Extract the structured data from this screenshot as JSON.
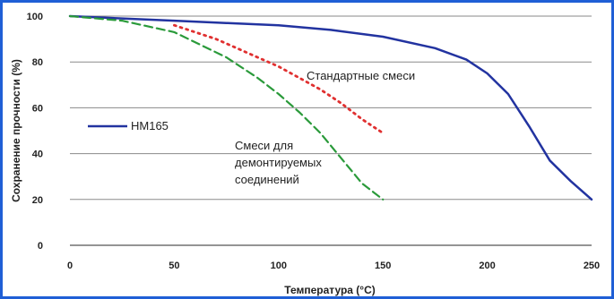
{
  "chart_data": {
    "type": "line",
    "xlabel": "Температура (°C)",
    "ylabel": "Сохранение прочности (%)",
    "xlim": [
      0,
      250
    ],
    "ylim": [
      0,
      100
    ],
    "x_ticks": [
      "0",
      "50",
      "100",
      "150",
      "200",
      "250"
    ],
    "y_ticks": [
      "0",
      "20",
      "40",
      "60",
      "80",
      "100"
    ],
    "grid": "horizontal",
    "legend": "left-middle",
    "series": [
      {
        "name": "HM165",
        "color": "#2233a0",
        "style": "solid",
        "x": [
          0,
          25,
          50,
          75,
          100,
          125,
          150,
          175,
          190,
          200,
          210,
          220,
          230,
          240,
          250
        ],
        "y": [
          100,
          99,
          98,
          97,
          96,
          94,
          91,
          86,
          81,
          75,
          66,
          52,
          37,
          28,
          20
        ]
      },
      {
        "name": "Стандартные смеси",
        "color": "#e03030",
        "style": "dotted",
        "x": [
          50,
          60,
          70,
          80,
          90,
          100,
          110,
          120,
          130,
          140,
          150
        ],
        "y": [
          96,
          93,
          90,
          86,
          82,
          78,
          73,
          68,
          62,
          55,
          49
        ]
      },
      {
        "name": "Смеси для демонтируемых соединений",
        "color": "#2a9a3a",
        "style": "dashed",
        "x": [
          0,
          25,
          50,
          75,
          90,
          100,
          110,
          120,
          130,
          140,
          150
        ],
        "y": [
          100,
          98,
          93,
          82,
          73,
          66,
          58,
          49,
          38,
          27,
          20
        ]
      }
    ],
    "annotations": {
      "standard": "Стандартные смеси",
      "removable_line1": "Смеси для",
      "removable_line2": "демонтируемых",
      "removable_line3": "соединений"
    }
  }
}
